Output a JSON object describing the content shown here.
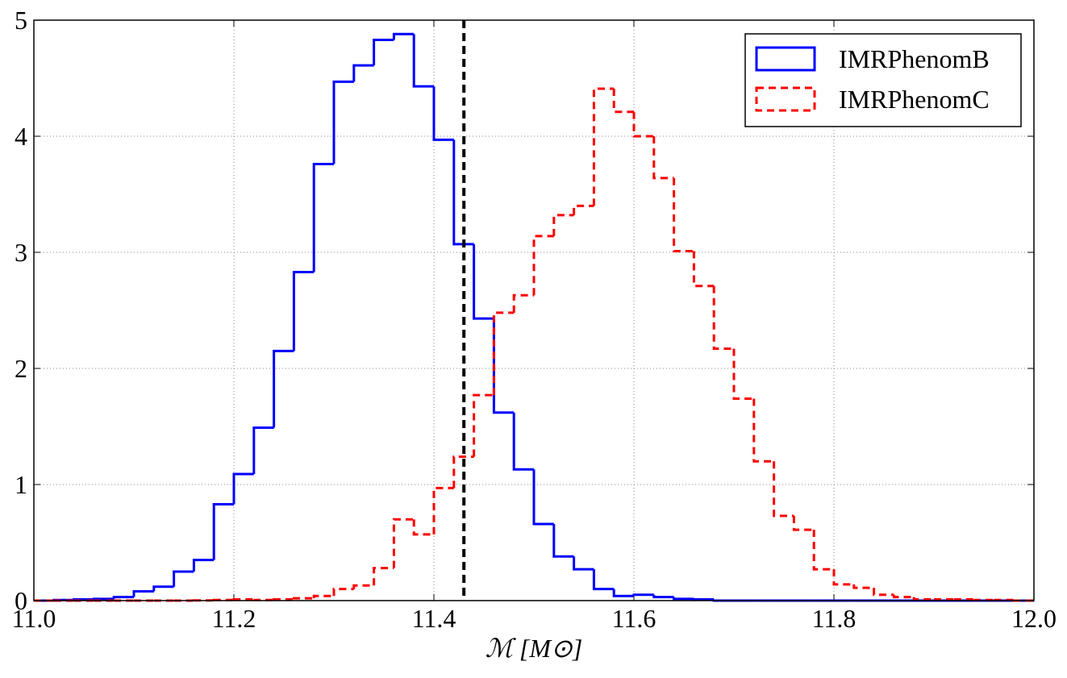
{
  "chart_data": {
    "type": "step-histogram",
    "xlabel": "ℳ [M⊙]",
    "bins": [
      11.0,
      11.02,
      11.04,
      11.06,
      11.08,
      11.1,
      11.12,
      11.14,
      11.16,
      11.18,
      11.2,
      11.22,
      11.24,
      11.26,
      11.28,
      11.3,
      11.32,
      11.34,
      11.36,
      11.38,
      11.4,
      11.42,
      11.44,
      11.46,
      11.48,
      11.5,
      11.52,
      11.54,
      11.56,
      11.58,
      11.6,
      11.62,
      11.64,
      11.66,
      11.68,
      11.7,
      11.72,
      11.74,
      11.76,
      11.78,
      11.8,
      11.82,
      11.84,
      11.86,
      11.88,
      11.9,
      11.92,
      11.94,
      11.96,
      11.98,
      12.0
    ],
    "series": [
      {
        "name": "IMRPhenomB",
        "color": "#0000ff",
        "dashed": false,
        "values": [
          0,
          0.005,
          0.01,
          0.015,
          0.03,
          0.08,
          0.12,
          0.25,
          0.35,
          0.83,
          1.09,
          1.49,
          2.15,
          2.83,
          3.76,
          4.47,
          4.61,
          4.83,
          4.88,
          4.43,
          3.97,
          3.07,
          2.43,
          1.62,
          1.13,
          0.66,
          0.38,
          0.27,
          0.1,
          0.04,
          0.05,
          0.03,
          0.015,
          0.01,
          0,
          0,
          0,
          0,
          0,
          0,
          0,
          0,
          0,
          0,
          0,
          0,
          0,
          0,
          0,
          0
        ]
      },
      {
        "name": "IMRPhenomC",
        "color": "#ff0000",
        "dashed": true,
        "values": [
          0,
          0,
          0,
          0,
          0,
          0,
          0,
          0,
          0.002,
          0.005,
          0.01,
          0.005,
          0.01,
          0.02,
          0.04,
          0.1,
          0.13,
          0.28,
          0.7,
          0.57,
          0.97,
          1.24,
          1.77,
          2.48,
          2.63,
          3.14,
          3.32,
          3.4,
          4.41,
          4.21,
          4.0,
          3.64,
          3.01,
          2.71,
          2.17,
          1.74,
          1.2,
          0.73,
          0.61,
          0.27,
          0.14,
          0.11,
          0.05,
          0.03,
          0.01,
          0.01,
          0.01,
          0.005,
          0.005,
          0
        ]
      }
    ],
    "vline": {
      "x": 11.43,
      "color": "#000000"
    },
    "xlim": [
      11.0,
      12.0
    ],
    "xticks": [
      {
        "value": 11,
        "label": "11.0"
      },
      11.2,
      11.4,
      11.6,
      11.8,
      {
        "value": 12,
        "label": "12.0"
      }
    ],
    "ylim": [
      0,
      5
    ],
    "yticks": [
      0,
      1,
      2,
      3,
      4,
      5
    ],
    "grid": true,
    "legend": "upper-right"
  }
}
